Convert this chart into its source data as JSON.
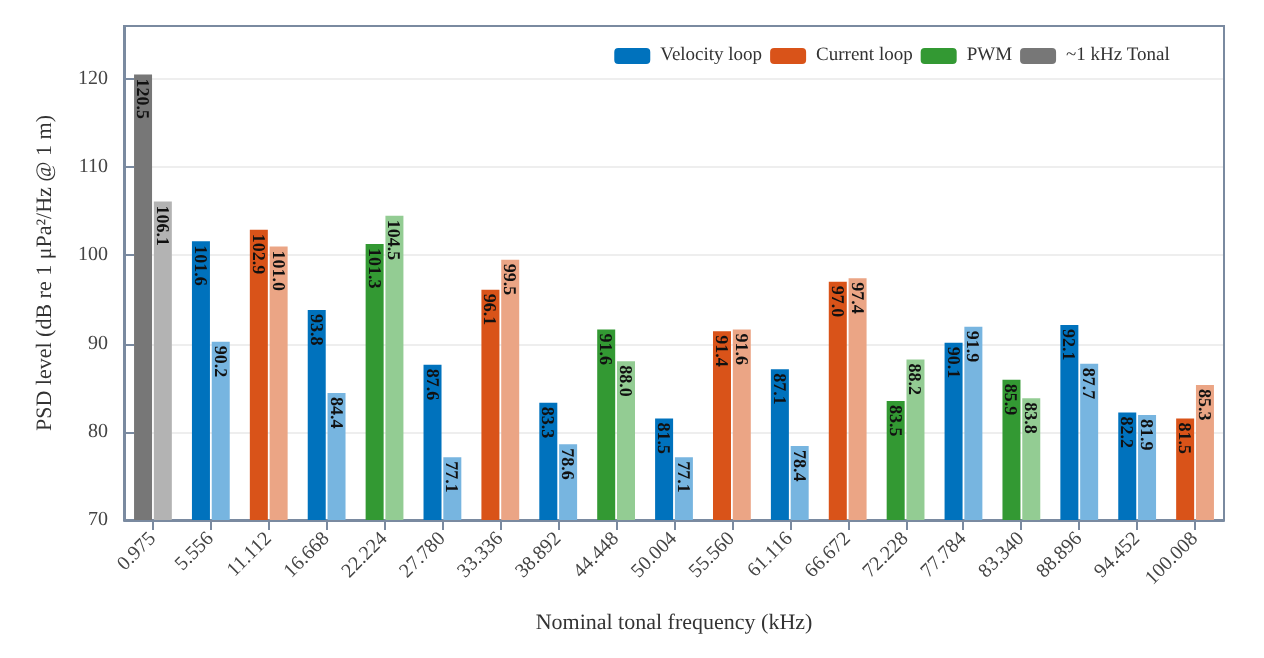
{
  "chart_data": {
    "type": "bar",
    "xlabel": "Nominal tonal frequency (kHz)",
    "ylabel": "PSD level (dB re 1 μPa²/Hz @ 1 m)",
    "categories": [
      "0.975",
      "5.556",
      "11.112",
      "16.668",
      "22.224",
      "27.780",
      "33.336",
      "38.892",
      "44.448",
      "50.004",
      "55.560",
      "61.116",
      "66.672",
      "72.228",
      "77.784",
      "83.340",
      "88.896",
      "94.452",
      "100.008"
    ],
    "series": [
      {
        "name": "Velocity loop",
        "color": "#0072bd",
        "values": [
          null,
          101.6,
          null,
          93.8,
          null,
          87.6,
          null,
          83.3,
          null,
          81.5,
          null,
          87.1,
          null,
          null,
          90.1,
          null,
          92.1,
          82.2,
          null
        ],
        "value_labels": [
          null,
          "101.6",
          null,
          "93.8",
          null,
          "87.6",
          null,
          "83.3",
          null,
          "81.5",
          null,
          "87.1",
          null,
          null,
          "90.1",
          null,
          "92.1",
          "82.2",
          null
        ]
      },
      {
        "color": "#77b5e0",
        "values": [
          null,
          90.2,
          null,
          84.4,
          null,
          77.1,
          null,
          78.6,
          null,
          77.1,
          null,
          78.4,
          null,
          null,
          91.9,
          null,
          87.7,
          81.9,
          null
        ],
        "value_labels": [
          null,
          "90.2",
          null,
          "84.4",
          null,
          "77.1",
          null,
          "78.6",
          null,
          "77.1",
          null,
          "78.4",
          null,
          null,
          "91.9",
          null,
          "87.7",
          "81.9",
          null
        ]
      },
      {
        "name": "Current loop",
        "color": "#d95319",
        "values": [
          null,
          null,
          102.9,
          null,
          null,
          null,
          96.1,
          null,
          null,
          null,
          91.4,
          null,
          97.0,
          null,
          null,
          null,
          null,
          null,
          81.5
        ],
        "value_labels": [
          null,
          null,
          "102.9",
          null,
          null,
          null,
          "96.1",
          null,
          null,
          null,
          "91.4",
          null,
          "97.0",
          null,
          null,
          null,
          null,
          null,
          "81.5"
        ]
      },
      {
        "color": "#eba585",
        "values": [
          null,
          null,
          101.0,
          null,
          null,
          null,
          99.5,
          null,
          null,
          null,
          91.6,
          null,
          97.4,
          null,
          null,
          null,
          null,
          null,
          85.3
        ],
        "value_labels": [
          null,
          null,
          "101.0",
          null,
          null,
          null,
          "99.5",
          null,
          null,
          null,
          "91.6",
          null,
          "97.4",
          null,
          null,
          null,
          null,
          null,
          "85.3"
        ]
      },
      {
        "name": "PWM",
        "color": "#339933",
        "values": [
          null,
          null,
          null,
          null,
          101.3,
          null,
          null,
          null,
          91.6,
          null,
          null,
          null,
          null,
          83.5,
          null,
          85.9,
          null,
          null,
          null
        ],
        "value_labels": [
          null,
          null,
          null,
          null,
          "101.3",
          null,
          null,
          null,
          "91.6",
          null,
          null,
          null,
          null,
          "83.5",
          null,
          "85.9",
          null,
          null,
          null
        ]
      },
      {
        "color": "#93cc93",
        "values": [
          null,
          null,
          null,
          null,
          104.5,
          null,
          null,
          null,
          88.0,
          null,
          null,
          null,
          null,
          88.2,
          null,
          83.8,
          null,
          null,
          null
        ],
        "value_labels": [
          null,
          null,
          null,
          null,
          "104.5",
          null,
          null,
          null,
          "88.0",
          null,
          null,
          null,
          null,
          "88.2",
          null,
          "83.8",
          null,
          null,
          null
        ]
      },
      {
        "name": "~1 kHz Tonal",
        "color": "#777777",
        "values": [
          120.5,
          null,
          null,
          null,
          null,
          null,
          null,
          null,
          null,
          null,
          null,
          null,
          null,
          null,
          null,
          null,
          null,
          null,
          null
        ],
        "value_labels": [
          "120.5",
          null,
          null,
          null,
          null,
          null,
          null,
          null,
          null,
          null,
          null,
          null,
          null,
          null,
          null,
          null,
          null,
          null,
          null
        ]
      },
      {
        "color": "#b3b3b3",
        "values": [
          106.1,
          null,
          null,
          null,
          null,
          null,
          null,
          null,
          null,
          null,
          null,
          null,
          null,
          null,
          null,
          null,
          null,
          null,
          null
        ],
        "value_labels": [
          "106.1",
          null,
          null,
          null,
          null,
          null,
          null,
          null,
          null,
          null,
          null,
          null,
          null,
          null,
          null,
          null,
          null,
          null,
          null
        ]
      }
    ],
    "ylim": [
      70,
      126
    ],
    "yticks": [
      70,
      80,
      90,
      100,
      110,
      120
    ],
    "grid": "y",
    "legend": "top right"
  }
}
